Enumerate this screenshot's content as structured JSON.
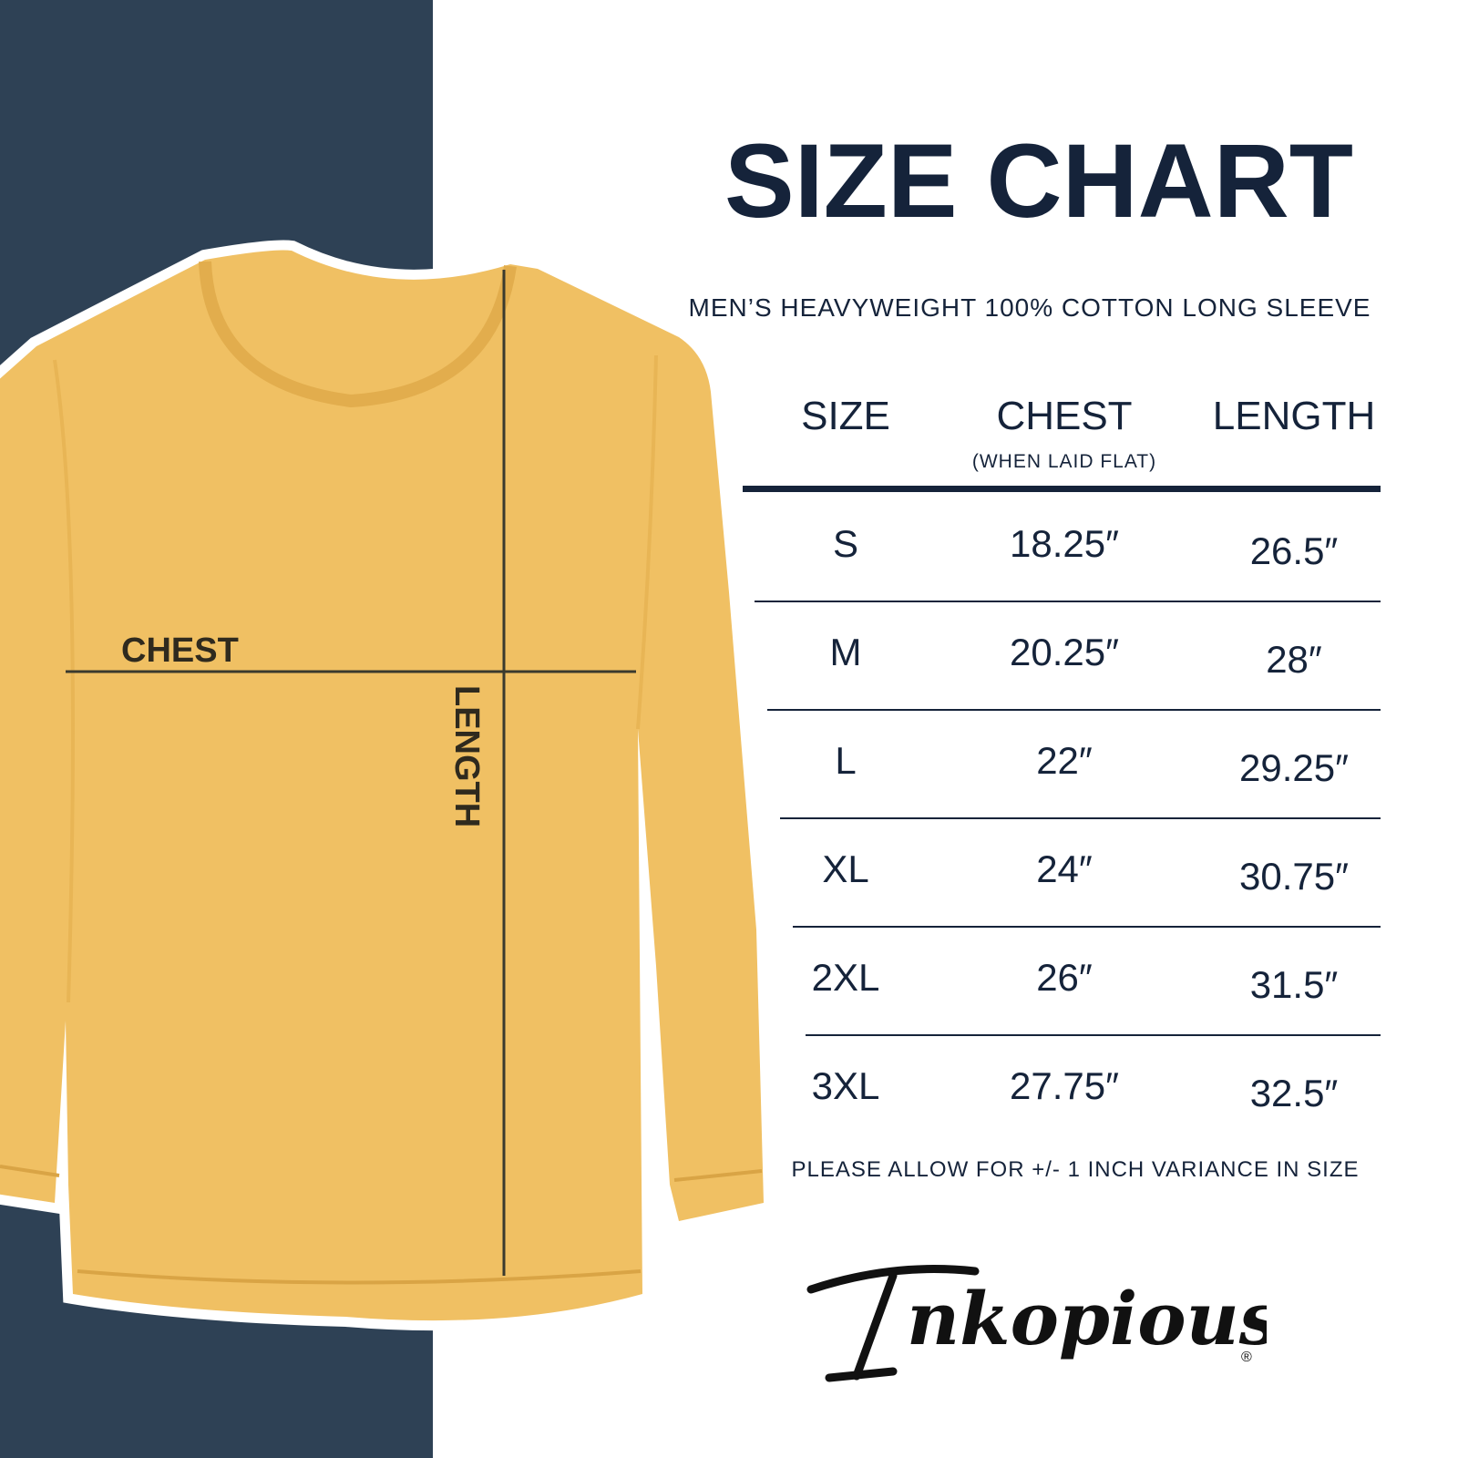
{
  "title": "SIZE CHART",
  "subtitle": "MEN’S HEAVYWEIGHT 100% COTTON LONG SLEEVE",
  "colors": {
    "navy_panel": "#2e4155",
    "text": "#15233a",
    "shirt": "#f0c063"
  },
  "shirt_labels": {
    "chest": "CHEST",
    "length": "LENGTH"
  },
  "table": {
    "headers": {
      "size": "SIZE",
      "chest": "CHEST",
      "chest_note": "(WHEN LAID FLAT)",
      "length": "LENGTH"
    },
    "rows": [
      {
        "size": "S",
        "chest": "18.25″",
        "length": "26.5″"
      },
      {
        "size": "M",
        "chest": "20.25″",
        "length": "28″"
      },
      {
        "size": "L",
        "chest": "22″",
        "length": "29.25″"
      },
      {
        "size": "XL",
        "chest": "24″",
        "length": "30.75″"
      },
      {
        "size": "2XL",
        "chest": "26″",
        "length": "31.5″"
      },
      {
        "size": "3XL",
        "chest": "27.75″",
        "length": "32.5″"
      }
    ]
  },
  "footer": "PLEASE ALLOW FOR +/- 1 INCH VARIANCE IN SIZE",
  "logo": {
    "text": "Inkopious",
    "mark": "®"
  }
}
